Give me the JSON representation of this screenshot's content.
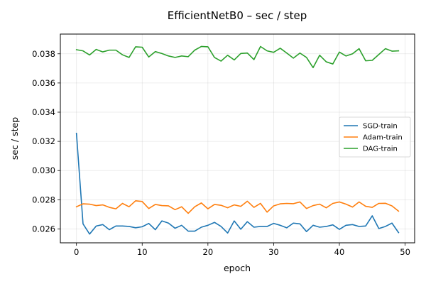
{
  "chart_data": {
    "type": "line",
    "title": "EfficientNetB0 – sec / step",
    "xlabel": "epoch",
    "ylabel": "sec / step",
    "xlim": [
      -2.45,
      51.45
    ],
    "ylim": [
      0.02505,
      0.03935
    ],
    "xticks": [
      0,
      10,
      20,
      30,
      40,
      50
    ],
    "xtick_labels": [
      "0",
      "10",
      "20",
      "30",
      "40",
      "50"
    ],
    "yticks": [
      0.026,
      0.028,
      0.03,
      0.032,
      0.034,
      0.036,
      0.038
    ],
    "ytick_labels": [
      "0.026",
      "0.028",
      "0.030",
      "0.032",
      "0.034",
      "0.036",
      "0.038"
    ],
    "grid": true,
    "legend_position": "center-right",
    "x": [
      0,
      1,
      2,
      3,
      4,
      5,
      6,
      7,
      8,
      9,
      10,
      11,
      12,
      13,
      14,
      15,
      16,
      17,
      18,
      19,
      20,
      21,
      22,
      23,
      24,
      25,
      26,
      27,
      28,
      29,
      30,
      31,
      32,
      33,
      34,
      35,
      36,
      37,
      38,
      39,
      40,
      41,
      42,
      43,
      44,
      45,
      46,
      47,
      48,
      49
    ],
    "series": [
      {
        "name": "SGD-train",
        "color": "#1f77b4",
        "values": [
          0.03255,
          0.02635,
          0.02565,
          0.0262,
          0.0263,
          0.02595,
          0.0262,
          0.0262,
          0.02617,
          0.02608,
          0.02615,
          0.02638,
          0.02595,
          0.02655,
          0.0264,
          0.02605,
          0.02625,
          0.02585,
          0.02585,
          0.02612,
          0.02625,
          0.02645,
          0.02617,
          0.02572,
          0.02655,
          0.02598,
          0.0265,
          0.02612,
          0.02617,
          0.02617,
          0.02638,
          0.02625,
          0.02608,
          0.0264,
          0.02635,
          0.02582,
          0.02625,
          0.02612,
          0.02617,
          0.02628,
          0.02597,
          0.02625,
          0.0263,
          0.02617,
          0.0262,
          0.0269,
          0.02603,
          0.02617,
          0.0264,
          0.02575
        ]
      },
      {
        "name": "Adam-train",
        "color": "#ff7f0e",
        "values": [
          0.02752,
          0.02772,
          0.0277,
          0.0276,
          0.02765,
          0.02748,
          0.02738,
          0.02775,
          0.02752,
          0.02793,
          0.02788,
          0.0274,
          0.02768,
          0.0276,
          0.02758,
          0.02732,
          0.02752,
          0.02707,
          0.02752,
          0.02778,
          0.02738,
          0.02768,
          0.02762,
          0.02745,
          0.02765,
          0.02755,
          0.0279,
          0.02748,
          0.02775,
          0.02715,
          0.02758,
          0.02772,
          0.02775,
          0.02773,
          0.02785,
          0.0274,
          0.0276,
          0.0277,
          0.02745,
          0.02775,
          0.02785,
          0.0277,
          0.0275,
          0.02785,
          0.02755,
          0.02748,
          0.02775,
          0.02776,
          0.02758,
          0.02722
        ]
      },
      {
        "name": "DAG-train",
        "color": "#2ca02c",
        "values": [
          0.03828,
          0.0382,
          0.03792,
          0.0383,
          0.03813,
          0.03825,
          0.03825,
          0.03793,
          0.03775,
          0.03848,
          0.03845,
          0.03778,
          0.03815,
          0.03802,
          0.03785,
          0.03775,
          0.03785,
          0.0378,
          0.03825,
          0.0385,
          0.03848,
          0.03775,
          0.0375,
          0.0379,
          0.03758,
          0.03802,
          0.03805,
          0.0376,
          0.0385,
          0.0382,
          0.0381,
          0.03838,
          0.03805,
          0.0377,
          0.03805,
          0.03775,
          0.03705,
          0.0379,
          0.03745,
          0.0373,
          0.03812,
          0.03785,
          0.038,
          0.03835,
          0.03752,
          0.03755,
          0.03795,
          0.03835,
          0.03818,
          0.0382
        ]
      }
    ]
  }
}
